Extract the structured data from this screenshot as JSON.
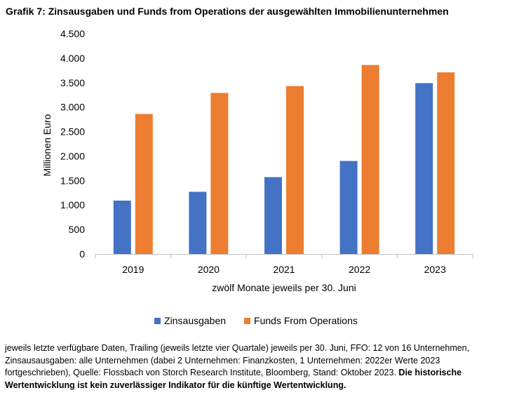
{
  "chart_data": {
    "type": "bar",
    "title": "Grafik 7: Zinsausgaben und Funds from Operations der ausgewählten Immobilienunternehmen",
    "categories": [
      "2019",
      "2020",
      "2021",
      "2022",
      "2023"
    ],
    "series": [
      {
        "name": "Zinsausgaben",
        "color": "#4472C4",
        "values": [
          1090,
          1270,
          1570,
          1900,
          3490
        ]
      },
      {
        "name": "Funds From Operations",
        "color": "#ED7D31",
        "values": [
          2860,
          3290,
          3430,
          3860,
          3710
        ]
      }
    ],
    "ylabel": "Millionen Euro",
    "xlabel": "zwölf Monate jeweils per 30. Juni",
    "ylim": [
      0,
      4500
    ],
    "yticks": [
      0,
      500,
      1000,
      1500,
      2000,
      2500,
      3000,
      3500,
      4000,
      4500
    ],
    "ytick_labels": [
      "0",
      "500",
      "1.000",
      "1.500",
      "2.000",
      "2.500",
      "3.000",
      "3.500",
      "4.000",
      "4.500"
    ],
    "grid": false,
    "legend_position": "bottom"
  },
  "footnote": {
    "text": "jeweils letzte verfügbare Daten, Trailing (jeweils letzte vier Quartale) jeweils per 30. Juni, FFO: 12 von 16 Unternehmen, Zinsausausgaben: alle Unternehmen (dabei 2 Unternehmen: Finanzkosten, 1 Unternehmen: 2022er Werte 2023 fortgeschrieben), Quelle: Flossbach von Storch Research Institute, Bloomberg, Stand: Oktober 2023. ",
    "bold_text": "Die historische Wertentwicklung ist kein zuverlässiger Indikator für die künftige Wertentwicklung."
  }
}
